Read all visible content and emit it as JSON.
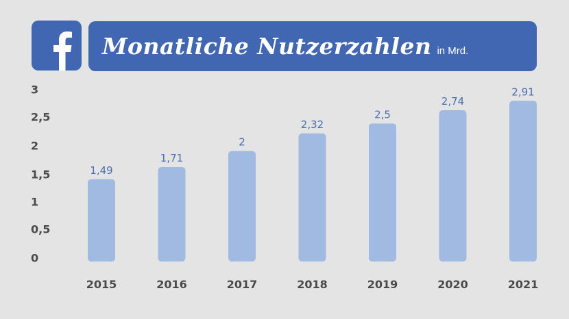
{
  "header": {
    "logo_icon": "facebook-f-icon",
    "title": "Monatliche Nutzerzahlen",
    "unit": "in Mrd."
  },
  "colors": {
    "background": "#e4e4e4",
    "brand": "#4267b2",
    "bar": "#a0bae2",
    "data_label": "#4a6fb0",
    "axis_text": "#4a4a4a"
  },
  "chart_data": {
    "type": "bar",
    "title": "Monatliche Nutzerzahlen",
    "ylabel": "in Mrd.",
    "xlabel": "",
    "categories": [
      "2015",
      "2016",
      "2017",
      "2018",
      "2019",
      "2020",
      "2021"
    ],
    "values": [
      1.49,
      1.71,
      2,
      2.32,
      2.5,
      2.74,
      2.91
    ],
    "value_labels": [
      "1,49",
      "1,71",
      "2",
      "2,32",
      "2,5",
      "2,74",
      "2,91"
    ],
    "y_ticks": [
      0,
      0.5,
      1,
      1.5,
      2,
      2.5,
      3
    ],
    "y_tick_labels": [
      "0",
      "0,5",
      "1",
      "1,5",
      "2",
      "2,5",
      "3"
    ],
    "ylim": [
      0,
      3
    ],
    "grid": false,
    "legend": "none"
  }
}
